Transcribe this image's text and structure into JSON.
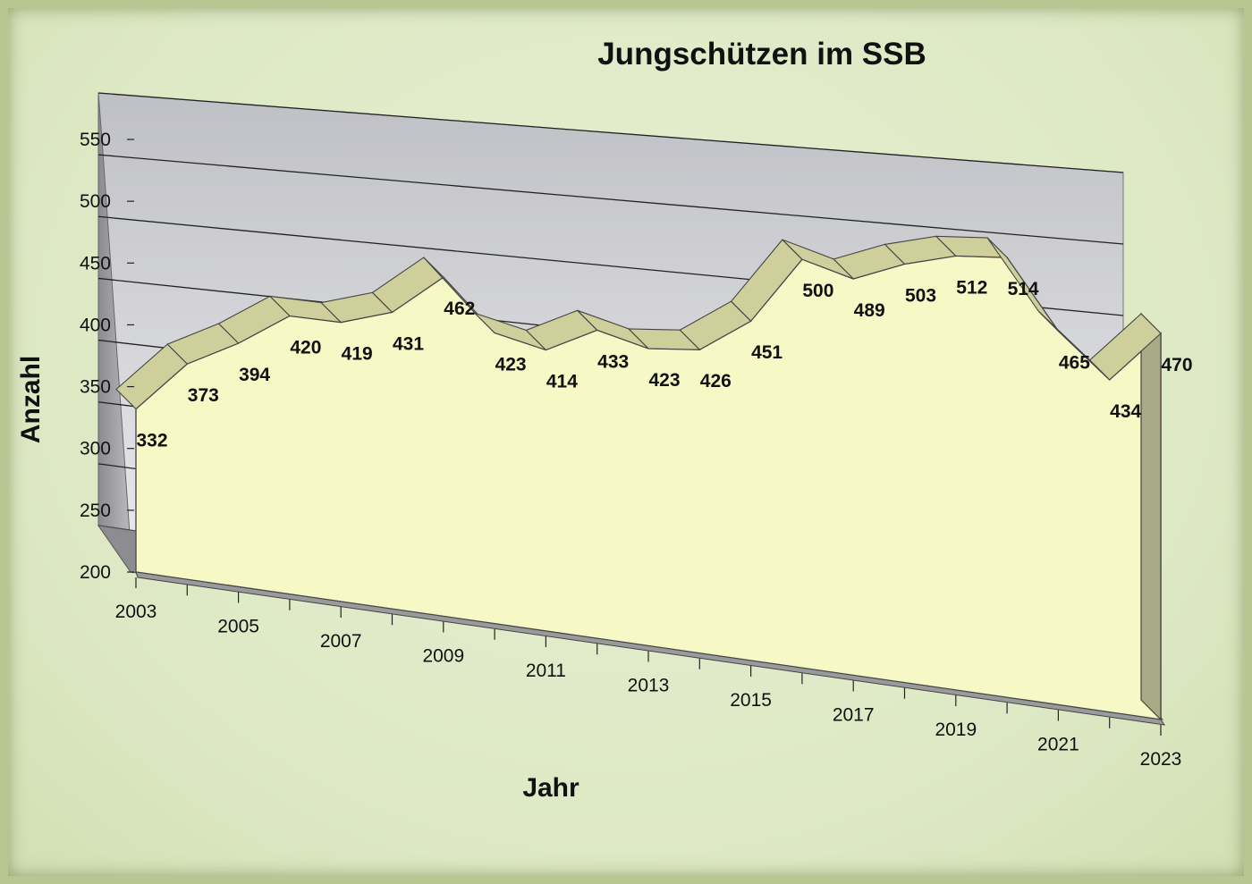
{
  "chart_data": {
    "type": "area",
    "title": "Jungschützen im SSB",
    "xlabel": "Jahr",
    "ylabel": "Anzahl",
    "ylim": [
      200,
      550
    ],
    "y_ticks": [
      "200",
      "250",
      "300",
      "350",
      "400",
      "450",
      "500",
      "550"
    ],
    "x_tick_labels": [
      "2003",
      "2005",
      "2007",
      "2009",
      "2011",
      "2013",
      "2015",
      "2017",
      "2019",
      "2021",
      "2023"
    ],
    "x": [
      2003,
      2004,
      2005,
      2006,
      2007,
      2008,
      2009,
      2010,
      2011,
      2012,
      2013,
      2014,
      2015,
      2016,
      2017,
      2018,
      2019,
      2020,
      2021,
      2022,
      2023
    ],
    "values": [
      332,
      373,
      394,
      420,
      419,
      431,
      462,
      423,
      414,
      433,
      423,
      426,
      451,
      500,
      489,
      503,
      512,
      514,
      465,
      434,
      470
    ],
    "grid": true,
    "legend": "none",
    "colors": {
      "area_fill": "#f6f8c6",
      "ridge": "#cfcf9c",
      "back_wall_top": "#c2c3c7",
      "back_wall_bottom": "#f2f2f4",
      "frame_border": "#b7c792"
    }
  }
}
